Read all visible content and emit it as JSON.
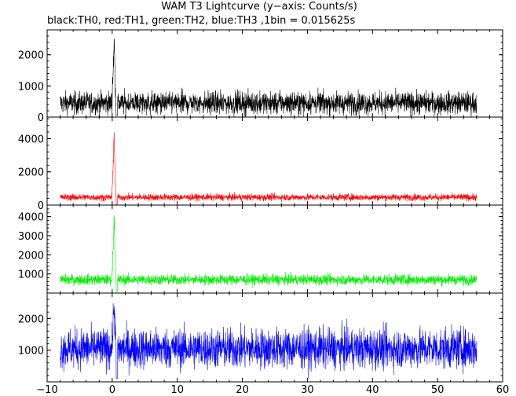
{
  "chart_data": {
    "type": "line",
    "title": "WAM T3 Lightcurve (y−axis: Counts/s)",
    "subtitle": "black:TH0, red:TH1, green:TH2, blue:TH3 ,1bin = 0.015625s",
    "xlabel": "",
    "ylabel": "",
    "xlim": [
      -10,
      60
    ],
    "x_ticks": [
      -10,
      0,
      10,
      20,
      30,
      40,
      50,
      60
    ],
    "x_range": [
      -8,
      56
    ],
    "bin_size": 0.015625,
    "grid": false,
    "panels": [
      {
        "name": "TH0",
        "color": "#000000",
        "ylim": [
          0,
          2800
        ],
        "y_ticks": [
          0,
          1000,
          2000
        ],
        "baseline": 450,
        "noise": 260,
        "peak": 2780,
        "peak_x": 0.3,
        "dip_x": 0.7
      },
      {
        "name": "TH1",
        "color": "#ff0000",
        "ylim": [
          0,
          5300
        ],
        "y_ticks": [
          0,
          2000,
          4000
        ],
        "baseline": 470,
        "noise": 150,
        "peak": 4700,
        "peak_x": 0.3,
        "dip_x": 0.7
      },
      {
        "name": "TH2",
        "color": "#00ee00",
        "ylim": [
          0,
          4600
        ],
        "y_ticks": [
          1000,
          2000,
          3000,
          4000
        ],
        "baseline": 700,
        "noise": 200,
        "peak": 4500,
        "peak_x": 0.3,
        "dip_x": 0.7
      },
      {
        "name": "TH3",
        "color": "#0000ff",
        "ylim": [
          0,
          2800
        ],
        "y_ticks": [
          1000,
          2000
        ],
        "baseline": 1050,
        "noise": 450,
        "peak": 2750,
        "peak_x": 0.3,
        "dip_x": 0.7
      }
    ]
  }
}
